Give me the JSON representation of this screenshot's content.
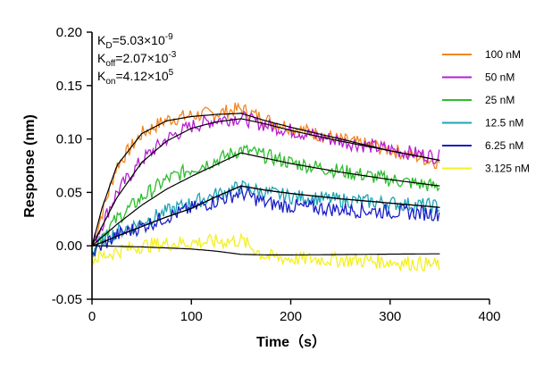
{
  "chart_data": {
    "type": "line",
    "xlabel": "Time（s）",
    "ylabel": "Response (nm)",
    "xlim": [
      0,
      400
    ],
    "ylim": [
      -0.05,
      0.2
    ],
    "x_ticks": [
      "0",
      "100",
      "200",
      "300",
      "400"
    ],
    "y_ticks": [
      "-0.05",
      "0.00",
      "0.05",
      "0.10",
      "0.15",
      "0.20"
    ],
    "grid": false,
    "legend_position": "top-right",
    "annotations": [
      {
        "main": "K",
        "sub": "D",
        "rest": "=5.03×10",
        "sup": "-9"
      },
      {
        "main": "K",
        "sub": "off",
        "rest": "=2.07×10",
        "sup": "-3"
      },
      {
        "main": "K",
        "sub": "on",
        "rest": "=4.12×10",
        "sup": "5"
      }
    ],
    "association_end_s": 150,
    "end_s": 350,
    "series": [
      {
        "name": "100 nM",
        "color": "#f28522",
        "points": [
          [
            0,
            0.0
          ],
          [
            10,
            0.03
          ],
          [
            25,
            0.075
          ],
          [
            50,
            0.105
          ],
          [
            75,
            0.118
          ],
          [
            100,
            0.122
          ],
          [
            125,
            0.124
          ],
          [
            150,
            0.128
          ],
          [
            175,
            0.118
          ],
          [
            200,
            0.111
          ],
          [
            250,
            0.099
          ],
          [
            300,
            0.09
          ],
          [
            350,
            0.078
          ]
        ],
        "fit": [
          [
            0,
            0.0
          ],
          [
            10,
            0.035
          ],
          [
            25,
            0.075
          ],
          [
            50,
            0.105
          ],
          [
            75,
            0.117
          ],
          [
            100,
            0.121
          ],
          [
            125,
            0.123
          ],
          [
            150,
            0.124
          ],
          [
            175,
            0.117
          ],
          [
            200,
            0.111
          ],
          [
            250,
            0.1
          ],
          [
            300,
            0.089
          ],
          [
            350,
            0.08
          ]
        ]
      },
      {
        "name": "50 nM",
        "color": "#b71fd3",
        "points": [
          [
            0,
            0.0
          ],
          [
            10,
            0.02
          ],
          [
            25,
            0.05
          ],
          [
            50,
            0.08
          ],
          [
            75,
            0.1
          ],
          [
            100,
            0.112
          ],
          [
            125,
            0.118
          ],
          [
            150,
            0.12
          ],
          [
            175,
            0.113
          ],
          [
            200,
            0.108
          ],
          [
            250,
            0.098
          ],
          [
            300,
            0.09
          ],
          [
            350,
            0.083
          ]
        ],
        "fit": [
          [
            0,
            0.0
          ],
          [
            10,
            0.018
          ],
          [
            25,
            0.045
          ],
          [
            50,
            0.078
          ],
          [
            75,
            0.098
          ],
          [
            100,
            0.11
          ],
          [
            125,
            0.116
          ],
          [
            150,
            0.119
          ],
          [
            175,
            0.114
          ],
          [
            200,
            0.108
          ],
          [
            250,
            0.098
          ],
          [
            300,
            0.089
          ],
          [
            350,
            0.08
          ]
        ]
      },
      {
        "name": "25 nM",
        "color": "#2dbd2d",
        "points": [
          [
            0,
            -0.005
          ],
          [
            10,
            0.01
          ],
          [
            25,
            0.025
          ],
          [
            50,
            0.045
          ],
          [
            75,
            0.062
          ],
          [
            100,
            0.072
          ],
          [
            125,
            0.08
          ],
          [
            150,
            0.09
          ],
          [
            175,
            0.084
          ],
          [
            200,
            0.078
          ],
          [
            250,
            0.07
          ],
          [
            300,
            0.062
          ],
          [
            350,
            0.055
          ]
        ],
        "fit": [
          [
            0,
            0.0
          ],
          [
            10,
            0.008
          ],
          [
            25,
            0.02
          ],
          [
            50,
            0.038
          ],
          [
            75,
            0.053
          ],
          [
            100,
            0.065
          ],
          [
            125,
            0.076
          ],
          [
            150,
            0.087
          ],
          [
            175,
            0.082
          ],
          [
            200,
            0.077
          ],
          [
            250,
            0.069
          ],
          [
            300,
            0.062
          ],
          [
            350,
            0.056
          ]
        ]
      },
      {
        "name": "12.5 nM",
        "color": "#1fa3b6",
        "points": [
          [
            0,
            -0.005
          ],
          [
            10,
            0.005
          ],
          [
            25,
            0.013
          ],
          [
            50,
            0.022
          ],
          [
            75,
            0.032
          ],
          [
            100,
            0.04
          ],
          [
            125,
            0.048
          ],
          [
            150,
            0.055
          ],
          [
            175,
            0.05
          ],
          [
            200,
            0.046
          ],
          [
            250,
            0.043
          ],
          [
            300,
            0.04
          ],
          [
            350,
            0.037
          ]
        ],
        "fit": [
          [
            0,
            0.0
          ],
          [
            10,
            0.003
          ],
          [
            25,
            0.009
          ],
          [
            50,
            0.018
          ],
          [
            75,
            0.027
          ],
          [
            100,
            0.035
          ],
          [
            125,
            0.046
          ],
          [
            150,
            0.056
          ],
          [
            175,
            0.052
          ],
          [
            200,
            0.049
          ],
          [
            250,
            0.044
          ],
          [
            300,
            0.04
          ],
          [
            350,
            0.036
          ]
        ]
      },
      {
        "name": "6.25 nM",
        "color": "#1a1fc8",
        "points": [
          [
            0,
            -0.008
          ],
          [
            10,
            0.0
          ],
          [
            25,
            0.01
          ],
          [
            50,
            0.018
          ],
          [
            75,
            0.027
          ],
          [
            100,
            0.035
          ],
          [
            125,
            0.042
          ],
          [
            150,
            0.05
          ],
          [
            175,
            0.04
          ],
          [
            200,
            0.037
          ],
          [
            250,
            0.034
          ],
          [
            300,
            0.032
          ],
          [
            350,
            0.03
          ]
        ],
        "fit": [
          [
            0,
            0.0
          ],
          [
            10,
            0.003
          ],
          [
            25,
            0.009
          ],
          [
            50,
            0.018
          ],
          [
            75,
            0.027
          ],
          [
            100,
            0.035
          ],
          [
            125,
            0.046
          ],
          [
            150,
            0.056
          ],
          [
            175,
            0.052
          ],
          [
            200,
            0.049
          ],
          [
            250,
            0.044
          ],
          [
            300,
            0.04
          ],
          [
            350,
            0.036
          ]
        ]
      },
      {
        "name": "3.125 nM",
        "color": "#f4f01e",
        "points": [
          [
            0,
            -0.012
          ],
          [
            10,
            -0.01
          ],
          [
            25,
            -0.005
          ],
          [
            50,
            0.0
          ],
          [
            75,
            0.002
          ],
          [
            100,
            0.003
          ],
          [
            125,
            0.004
          ],
          [
            150,
            0.005
          ],
          [
            175,
            -0.01
          ],
          [
            200,
            -0.012
          ],
          [
            250,
            -0.013
          ],
          [
            300,
            -0.015
          ],
          [
            350,
            -0.018
          ]
        ],
        "fit": [
          [
            0,
            0.0
          ],
          [
            10,
            0.0
          ],
          [
            25,
            -0.0005
          ],
          [
            50,
            -0.001
          ],
          [
            75,
            -0.002
          ],
          [
            100,
            -0.003
          ],
          [
            125,
            -0.005
          ],
          [
            150,
            -0.008
          ],
          [
            175,
            -0.0085
          ],
          [
            200,
            -0.0085
          ],
          [
            250,
            -0.0082
          ],
          [
            300,
            -0.0078
          ],
          [
            350,
            -0.0075
          ]
        ]
      }
    ]
  }
}
